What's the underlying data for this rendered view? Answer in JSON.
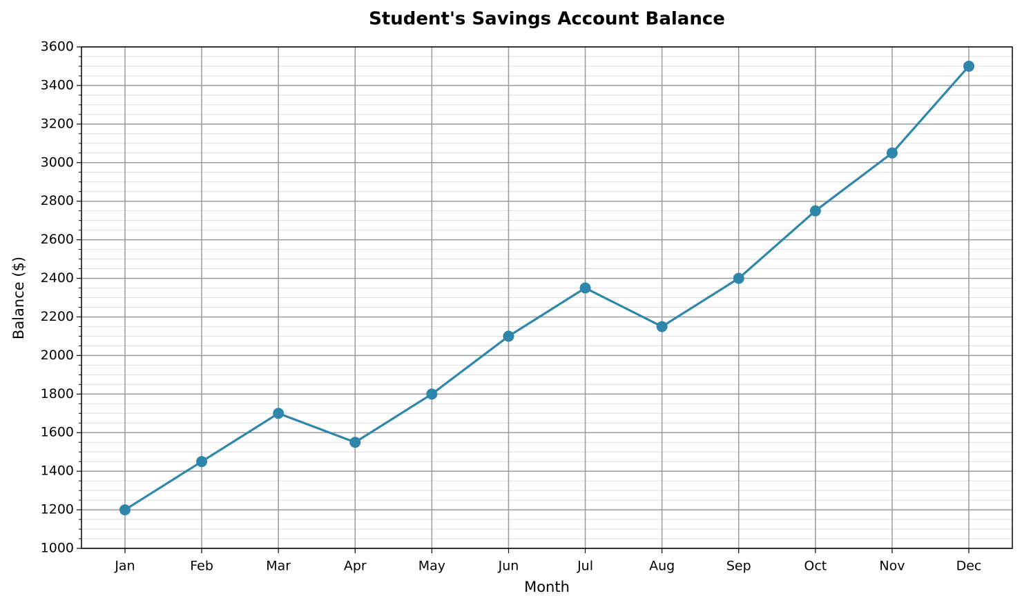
{
  "chart_data": {
    "type": "line",
    "title": "Student's Savings Account Balance",
    "x_label": "Month",
    "y_label": "Balance ($)",
    "categories": [
      "Jan",
      "Feb",
      "Mar",
      "Apr",
      "May",
      "Jun",
      "Jul",
      "Aug",
      "Sep",
      "Oct",
      "Nov",
      "Dec"
    ],
    "series": [
      {
        "name": "Balance",
        "color": "#2e86ab",
        "values": [
          1200,
          1450,
          1700,
          1550,
          1800,
          2100,
          2350,
          2150,
          2400,
          2750,
          3050,
          3500
        ]
      }
    ],
    "ylim": [
      1000,
      3600
    ],
    "yticks": [
      1000,
      1200,
      1400,
      1600,
      1800,
      2000,
      2200,
      2400,
      2600,
      2800,
      3000,
      3200,
      3400,
      3600
    ],
    "yminorticks": [
      1050,
      1100,
      1150,
      1250,
      1300,
      1350,
      1450,
      1500,
      1550,
      1650,
      1700,
      1750,
      1850,
      1900,
      1950,
      2050,
      2100,
      2150,
      2250,
      2300,
      2350,
      2450,
      2500,
      2550,
      2650,
      2700,
      2750,
      2850,
      2900,
      2950,
      3050,
      3100,
      3150,
      3250,
      3300,
      3350,
      3450,
      3500,
      3550
    ],
    "grid": true
  }
}
